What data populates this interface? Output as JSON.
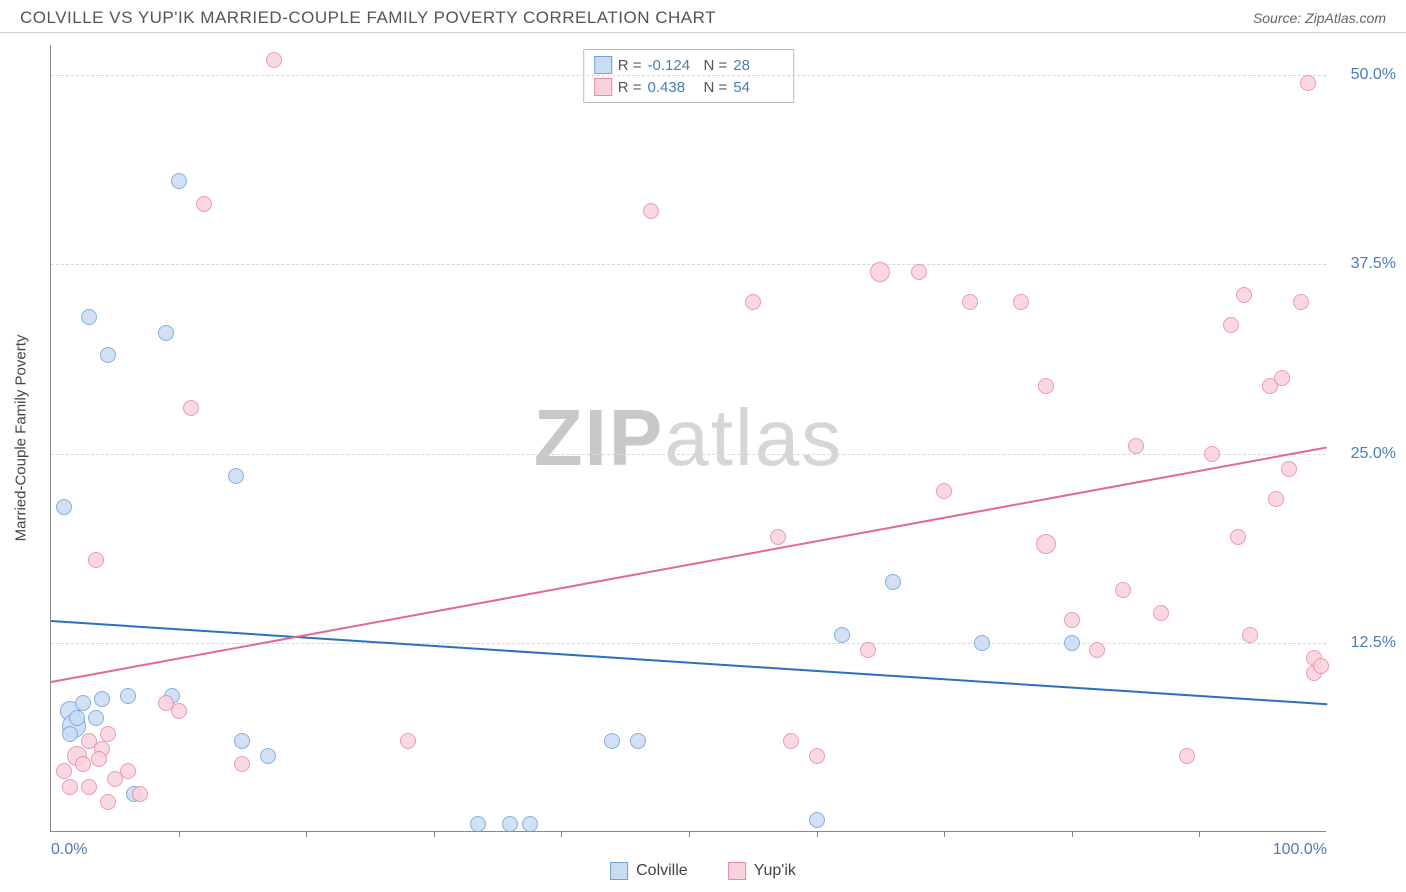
{
  "title": "COLVILLE VS YUP'IK MARRIED-COUPLE FAMILY POVERTY CORRELATION CHART",
  "source_prefix": "Source: ",
  "source_name": "ZipAtlas.com",
  "watermark_bold": "ZIP",
  "watermark_light": "atlas",
  "chart": {
    "type": "scatter",
    "y_axis_title": "Married-Couple Family Poverty",
    "xlim": [
      0,
      100
    ],
    "ylim": [
      0,
      52
    ],
    "y_ticks": [
      12.5,
      25.0,
      37.5,
      50.0
    ],
    "y_tick_labels": [
      "12.5%",
      "25.0%",
      "37.5%",
      "50.0%"
    ],
    "x_minor_ticks": [
      10,
      20,
      30,
      40,
      50,
      60,
      70,
      80,
      90
    ],
    "x_end_labels": {
      "min": "0.0%",
      "max": "100.0%"
    },
    "grid_color": "#d8d8d8",
    "background_color": "#ffffff",
    "series": [
      {
        "name": "Colville",
        "fill": "#c9dcf2",
        "stroke": "#6fa3dc",
        "line_color": "#2e6fc0",
        "stats": {
          "R": "-0.124",
          "N": "28"
        },
        "trend": {
          "x1": 0,
          "y1": 14.0,
          "x2": 100,
          "y2": 8.5
        },
        "points": [
          {
            "x": 1.0,
            "y": 21.5,
            "r": 8
          },
          {
            "x": 1.5,
            "y": 8.0,
            "r": 10
          },
          {
            "x": 1.8,
            "y": 7.0,
            "r": 12
          },
          {
            "x": 2.0,
            "y": 7.5,
            "r": 8
          },
          {
            "x": 3.0,
            "y": 34.0,
            "r": 8
          },
          {
            "x": 3.5,
            "y": 7.5,
            "r": 8
          },
          {
            "x": 4.0,
            "y": 8.8,
            "r": 8
          },
          {
            "x": 4.5,
            "y": 31.5,
            "r": 8
          },
          {
            "x": 6.0,
            "y": 9.0,
            "r": 8
          },
          {
            "x": 6.5,
            "y": 2.5,
            "r": 8
          },
          {
            "x": 9.0,
            "y": 33.0,
            "r": 8
          },
          {
            "x": 9.5,
            "y": 9.0,
            "r": 8
          },
          {
            "x": 10.0,
            "y": 43.0,
            "r": 8
          },
          {
            "x": 14.5,
            "y": 23.5,
            "r": 8
          },
          {
            "x": 15.0,
            "y": 6.0,
            "r": 8
          },
          {
            "x": 17.0,
            "y": 5.0,
            "r": 8
          },
          {
            "x": 33.5,
            "y": 0.5,
            "r": 8
          },
          {
            "x": 36.0,
            "y": 0.5,
            "r": 8
          },
          {
            "x": 37.5,
            "y": 0.5,
            "r": 8
          },
          {
            "x": 44.0,
            "y": 6.0,
            "r": 8
          },
          {
            "x": 46.0,
            "y": 6.0,
            "r": 8
          },
          {
            "x": 60.0,
            "y": 0.8,
            "r": 8
          },
          {
            "x": 62.0,
            "y": 13.0,
            "r": 8
          },
          {
            "x": 66.0,
            "y": 16.5,
            "r": 8
          },
          {
            "x": 73.0,
            "y": 12.5,
            "r": 8
          },
          {
            "x": 80.0,
            "y": 12.5,
            "r": 8
          },
          {
            "x": 1.5,
            "y": 6.5,
            "r": 8
          },
          {
            "x": 2.5,
            "y": 8.5,
            "r": 8
          }
        ]
      },
      {
        "name": "Yup'ik",
        "fill": "#f9d2dc",
        "stroke": "#e88aa5",
        "line_color": "#e36a8f",
        "stats": {
          "R": "0.438",
          "N": "54"
        },
        "trend": {
          "x1": 0,
          "y1": 10.0,
          "x2": 100,
          "y2": 25.5
        },
        "points": [
          {
            "x": 1.0,
            "y": 4.0,
            "r": 8
          },
          {
            "x": 1.5,
            "y": 3.0,
            "r": 8
          },
          {
            "x": 2.0,
            "y": 5.0,
            "r": 10
          },
          {
            "x": 2.5,
            "y": 4.5,
            "r": 8
          },
          {
            "x": 3.0,
            "y": 6.0,
            "r": 8
          },
          {
            "x": 3.0,
            "y": 3.0,
            "r": 8
          },
          {
            "x": 3.5,
            "y": 18.0,
            "r": 8
          },
          {
            "x": 4.0,
            "y": 5.5,
            "r": 8
          },
          {
            "x": 4.5,
            "y": 2.0,
            "r": 8
          },
          {
            "x": 4.5,
            "y": 6.5,
            "r": 8
          },
          {
            "x": 5.0,
            "y": 3.5,
            "r": 8
          },
          {
            "x": 6.0,
            "y": 4.0,
            "r": 8
          },
          {
            "x": 7.0,
            "y": 2.5,
            "r": 8
          },
          {
            "x": 9.0,
            "y": 8.5,
            "r": 8
          },
          {
            "x": 10.0,
            "y": 8.0,
            "r": 8
          },
          {
            "x": 11.0,
            "y": 28.0,
            "r": 8
          },
          {
            "x": 12.0,
            "y": 41.5,
            "r": 8
          },
          {
            "x": 15.0,
            "y": 4.5,
            "r": 8
          },
          {
            "x": 17.5,
            "y": 51.0,
            "r": 8
          },
          {
            "x": 28.0,
            "y": 6.0,
            "r": 8
          },
          {
            "x": 47.0,
            "y": 41.0,
            "r": 8
          },
          {
            "x": 55.0,
            "y": 35.0,
            "r": 8
          },
          {
            "x": 57.0,
            "y": 19.5,
            "r": 8
          },
          {
            "x": 58.0,
            "y": 6.0,
            "r": 8
          },
          {
            "x": 60.0,
            "y": 5.0,
            "r": 8
          },
          {
            "x": 65.0,
            "y": 37.0,
            "r": 10
          },
          {
            "x": 68.0,
            "y": 37.0,
            "r": 8
          },
          {
            "x": 70.0,
            "y": 22.5,
            "r": 8
          },
          {
            "x": 72.0,
            "y": 35.0,
            "r": 8
          },
          {
            "x": 76.0,
            "y": 35.0,
            "r": 8
          },
          {
            "x": 78.0,
            "y": 19.0,
            "r": 10
          },
          {
            "x": 78.0,
            "y": 29.5,
            "r": 8
          },
          {
            "x": 80.0,
            "y": 14.0,
            "r": 8
          },
          {
            "x": 82.0,
            "y": 12.0,
            "r": 8
          },
          {
            "x": 84.0,
            "y": 16.0,
            "r": 8
          },
          {
            "x": 85.0,
            "y": 25.5,
            "r": 8
          },
          {
            "x": 87.0,
            "y": 14.5,
            "r": 8
          },
          {
            "x": 89.0,
            "y": 5.0,
            "r": 8
          },
          {
            "x": 91.0,
            "y": 25.0,
            "r": 8
          },
          {
            "x": 92.5,
            "y": 33.5,
            "r": 8
          },
          {
            "x": 93.0,
            "y": 19.5,
            "r": 8
          },
          {
            "x": 93.5,
            "y": 35.5,
            "r": 8
          },
          {
            "x": 94.0,
            "y": 13.0,
            "r": 8
          },
          {
            "x": 95.5,
            "y": 29.5,
            "r": 8
          },
          {
            "x": 96.0,
            "y": 22.0,
            "r": 8
          },
          {
            "x": 96.5,
            "y": 30.0,
            "r": 8
          },
          {
            "x": 97.0,
            "y": 24.0,
            "r": 8
          },
          {
            "x": 98.0,
            "y": 35.0,
            "r": 8
          },
          {
            "x": 98.5,
            "y": 49.5,
            "r": 8
          },
          {
            "x": 99.0,
            "y": 10.5,
            "r": 8
          },
          {
            "x": 99.0,
            "y": 11.5,
            "r": 8
          },
          {
            "x": 99.5,
            "y": 11.0,
            "r": 8
          },
          {
            "x": 64.0,
            "y": 12.0,
            "r": 8
          },
          {
            "x": 3.8,
            "y": 4.8,
            "r": 8
          }
        ]
      }
    ]
  },
  "stats_labels": {
    "R": "R =",
    "N": "N ="
  }
}
